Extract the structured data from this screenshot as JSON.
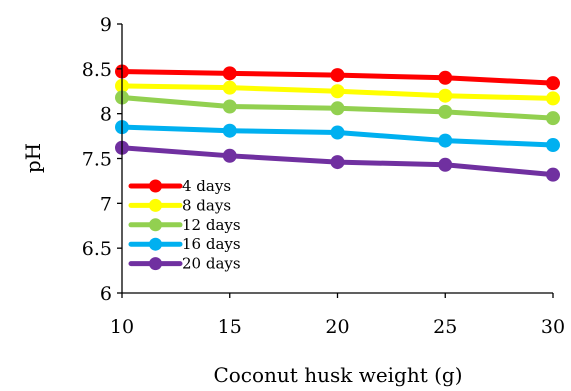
{
  "chart_data": {
    "type": "line",
    "title": "",
    "xlabel": "Coconut husk weight (g)",
    "ylabel": "pH",
    "xlim": [
      10,
      30
    ],
    "ylim": [
      6,
      9
    ],
    "xticks": [
      "10",
      "15",
      "20",
      "25",
      "30"
    ],
    "yticks": [
      "6",
      "6.5",
      "7",
      "7.5",
      "8",
      "8.5",
      "9"
    ],
    "grid": false,
    "legend_position": "bottom-left",
    "x": [
      10,
      15,
      20,
      25,
      30
    ],
    "series": [
      {
        "name": "4 days",
        "color": "#ff0000",
        "values": [
          8.47,
          8.45,
          8.43,
          8.4,
          8.34
        ]
      },
      {
        "name": "8 days",
        "color": "#ffff00",
        "values": [
          8.31,
          8.29,
          8.25,
          8.2,
          8.17
        ]
      },
      {
        "name": "12 days",
        "color": "#92d050",
        "values": [
          8.18,
          8.08,
          8.06,
          8.02,
          7.95
        ]
      },
      {
        "name": "16 days",
        "color": "#00b0f0",
        "values": [
          7.85,
          7.81,
          7.79,
          7.7,
          7.65
        ]
      },
      {
        "name": "20 days",
        "color": "#7030a0",
        "values": [
          7.62,
          7.53,
          7.46,
          7.43,
          7.32
        ]
      }
    ]
  }
}
